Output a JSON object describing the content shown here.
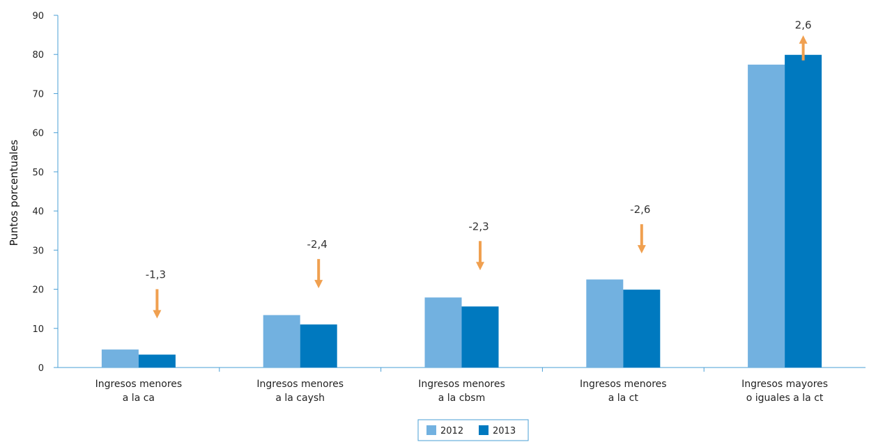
{
  "chart_data": {
    "type": "bar",
    "categories": [
      [
        "Ingresos menores",
        "a la ca"
      ],
      [
        "Ingresos menores",
        "a la caysh"
      ],
      [
        "Ingresos menores",
        "a la cbsm"
      ],
      [
        "Ingresos menores",
        "a la ct"
      ],
      [
        "Ingresos mayores",
        "o iguales a la ct"
      ]
    ],
    "series": [
      {
        "name": "2012",
        "values": [
          4.6,
          13.4,
          17.9,
          22.5,
          77.4
        ],
        "color": "#72b1e0"
      },
      {
        "name": "2013",
        "values": [
          3.3,
          11.0,
          15.6,
          19.9,
          79.9
        ],
        "color": "#0079bf"
      }
    ],
    "annotations": [
      {
        "label": "-1,3",
        "direction": "down"
      },
      {
        "label": "-2,4",
        "direction": "down"
      },
      {
        "label": "-2,3",
        "direction": "down"
      },
      {
        "label": "-2,6",
        "direction": "down"
      },
      {
        "label": "2,6",
        "direction": "up"
      }
    ],
    "annotation_color": "#f0a050",
    "ylabel": "Puntos porcentuales",
    "ylim": [
      0,
      90
    ],
    "yticks": [
      0,
      10,
      20,
      30,
      40,
      50,
      60,
      70,
      80,
      90
    ],
    "grid": false,
    "legend_position": "bottom-center",
    "axis_color": "#4a9fd6"
  }
}
